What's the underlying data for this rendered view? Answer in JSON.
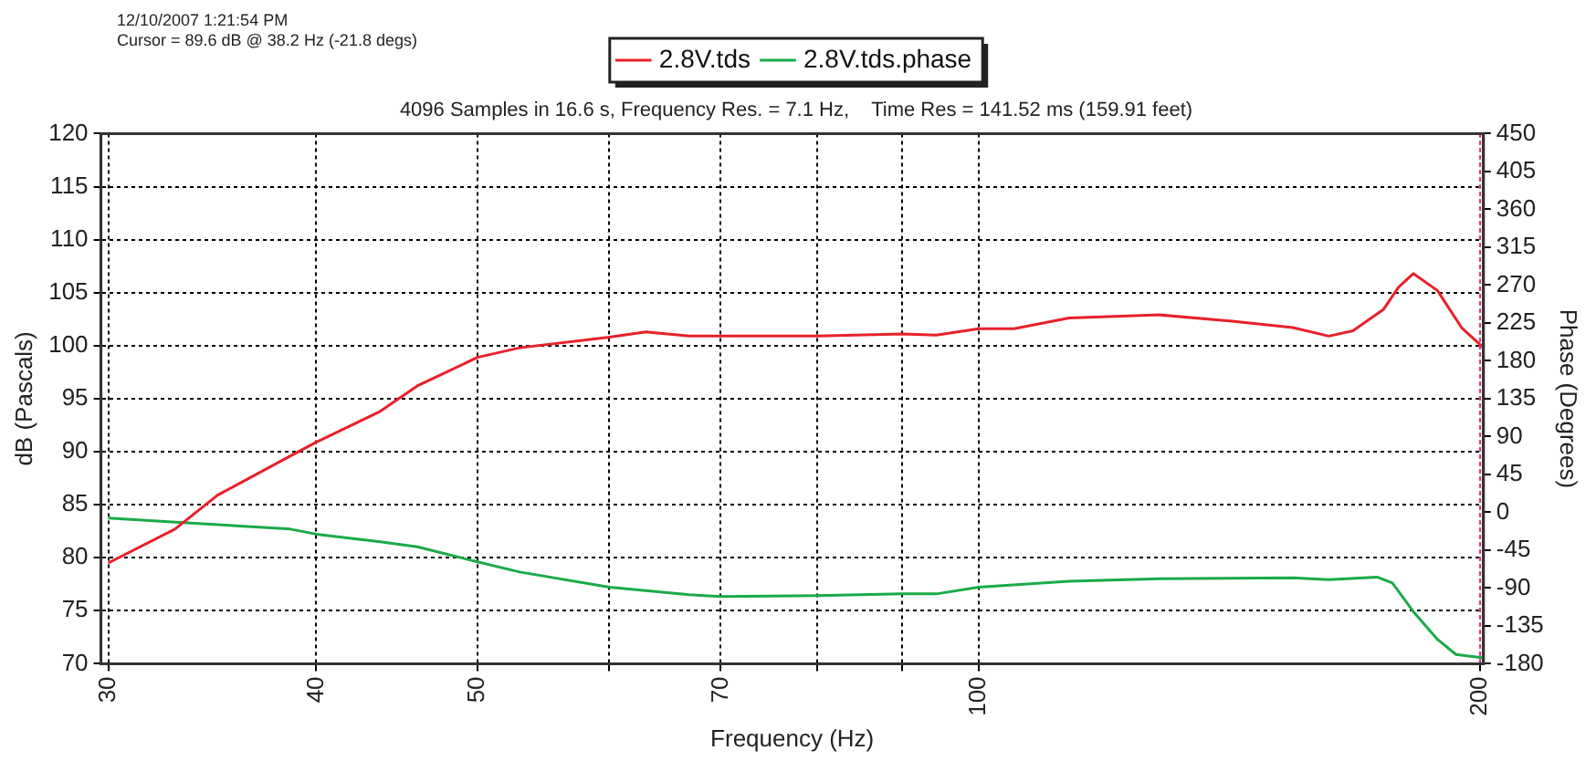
{
  "chart_data": {
    "type": "line",
    "title": "4096 Samples in 16.6 s, Frequency Res. = 7.1 Hz,    Time Res = 141.52 ms (159.91 feet)",
    "annotations": [
      "12/10/2007 1:21:54 PM",
      "Cursor = 89.6 dB @ 38.2 Hz (-21.8 degs)"
    ],
    "xlabel": "Frequency (Hz)",
    "ylabel": "dB (Pascals)",
    "y2label": "Phase (Degrees)",
    "log": "x",
    "grid": true,
    "legend": "top",
    "marker": "none",
    "line_style": "solid",
    "xlim": [
      29.7,
      201
    ],
    "xticks": [
      30,
      40,
      50,
      {
        "value": 60,
        "label": null
      },
      70,
      {
        "value": 80,
        "label": null
      },
      {
        "value": 90,
        "label": null
      },
      100,
      200
    ],
    "ylim": [
      70,
      120
    ],
    "yticks": [
      70,
      75,
      80,
      85,
      90,
      95,
      100,
      105,
      110,
      115,
      120
    ],
    "y2lim": [
      -180,
      450
    ],
    "y2ticks": [
      -180,
      -135,
      -90,
      -45,
      0,
      45,
      90,
      135,
      180,
      225,
      270,
      315,
      360,
      405,
      450
    ],
    "ref_lines": [
      {
        "axis": "x",
        "value": 200,
        "color": "#ff3399",
        "line_style": "dotted"
      }
    ],
    "series": [
      {
        "name": "2.8V.tds",
        "color": "#e8202a",
        "x": [
          30,
          32.9,
          34.9,
          38.6,
          40,
          43.7,
          46,
          50,
          53,
          60,
          63.1,
          67,
          70,
          80,
          90,
          94.3,
          100,
          105,
          113.3,
          128.4,
          142,
          154.4,
          162.3,
          167.8,
          175,
          178.7,
          182.4,
          188.6,
          195,
          201
        ],
        "values": [
          79.5,
          82.7,
          85.9,
          89.6,
          90.9,
          93.8,
          96.2,
          98.9,
          99.8,
          100.8,
          101.3,
          100.9,
          100.9,
          100.9,
          101.1,
          101,
          101.6,
          101.6,
          102.6,
          102.9,
          102.3,
          101.7,
          100.9,
          101.4,
          103.4,
          105.5,
          106.8,
          105.2,
          101.7,
          99.8
        ]
      },
      {
        "name": "2.8V.tds.phase",
        "color": "#1aaa48",
        "axis": "y2",
        "x": [
          30,
          33.1,
          38.6,
          40,
          43.7,
          46,
          50,
          53,
          60,
          67,
          70,
          80,
          90,
          94.3,
          100,
          113.3,
          128.4,
          154.4,
          162.3,
          173.5,
          177.2,
          182.4,
          188.6,
          193.5,
          201
        ],
        "values": [
          -7,
          -12,
          -20,
          -26,
          -35,
          -41,
          -59,
          -71,
          -89,
          -98,
          -100,
          -99,
          -97,
          -97,
          -89,
          -82,
          -79,
          -78,
          -80,
          -77,
          -84,
          -118,
          -151,
          -169,
          -173
        ]
      }
    ]
  }
}
